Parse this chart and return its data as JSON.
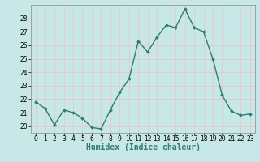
{
  "x": [
    0,
    1,
    2,
    3,
    4,
    5,
    6,
    7,
    8,
    9,
    10,
    11,
    12,
    13,
    14,
    15,
    16,
    17,
    18,
    19,
    20,
    21,
    22,
    23
  ],
  "y": [
    21.8,
    21.3,
    20.1,
    21.2,
    21.0,
    20.6,
    19.9,
    19.8,
    21.2,
    22.5,
    23.5,
    26.3,
    25.5,
    26.6,
    27.5,
    27.3,
    28.7,
    27.3,
    27.0,
    25.0,
    22.3,
    21.1,
    20.8,
    20.9
  ],
  "line_color": "#2e7d6e",
  "marker": "D",
  "marker_size": 2,
  "bg_color": "#c8e8e8",
  "grid_color": "#e8c8c8",
  "xlabel": "Humidex (Indice chaleur)",
  "ylim": [
    19.5,
    29.0
  ],
  "xlim": [
    -0.5,
    23.5
  ],
  "yticks": [
    20,
    21,
    22,
    23,
    24,
    25,
    26,
    27,
    28
  ],
  "xticks": [
    0,
    1,
    2,
    3,
    4,
    5,
    6,
    7,
    8,
    9,
    10,
    11,
    12,
    13,
    14,
    15,
    16,
    17,
    18,
    19,
    20,
    21,
    22,
    23
  ],
  "tick_fontsize": 5.5,
  "xlabel_fontsize": 7,
  "linewidth": 1.0
}
